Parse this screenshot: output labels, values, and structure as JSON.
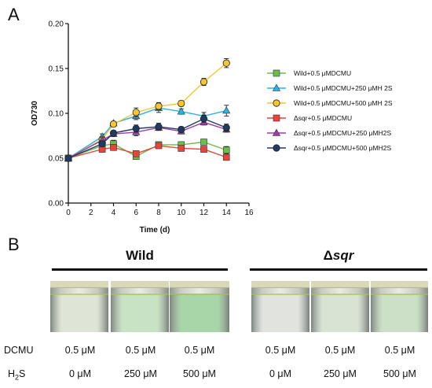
{
  "panel_a": {
    "letter": "A"
  },
  "panel_b": {
    "letter": "B",
    "group_wild": "Wild",
    "group_sqr_delta": "Δ",
    "group_sqr_name": "sqr",
    "row_dcmu": "DCMU",
    "row_h2s_main": "H",
    "row_h2s_sub": "2",
    "row_h2s_tail": "S",
    "dcmu_values": [
      "0.5 μM",
      "0.5 μM",
      "0.5 μM",
      "0.5 μM",
      "0.5 μM",
      "0.5 μM"
    ],
    "h2s_values": [
      "0 μM",
      "250 μM",
      "500 μM",
      "0 μM",
      "250 μM",
      "500 μM"
    ],
    "vial_tints": [
      "#dfe5d6",
      "#c8e2c4",
      "#a9d6a8",
      "#e1e3df",
      "#d8e3d4",
      "#cbe0c6"
    ]
  },
  "chart_data": {
    "type": "line",
    "xlabel": "Time (d)",
    "ylabel": "OD730",
    "xlim": [
      0,
      16
    ],
    "ylim": [
      0,
      0.2
    ],
    "xticks": [
      0,
      2,
      4,
      6,
      8,
      10,
      12,
      14,
      16
    ],
    "yticks": [
      "0.00",
      "0.05",
      "0.10",
      "0.15",
      "0.20"
    ],
    "x": [
      0,
      3,
      4,
      6,
      8,
      10,
      12,
      14
    ],
    "grid": false,
    "legend_position": "right",
    "series": [
      {
        "name": "Wild+0.5 μMDCMU",
        "color": "#6abf4b",
        "marker": "square",
        "values": [
          0.05,
          0.064,
          0.066,
          0.052,
          0.065,
          0.065,
          0.068,
          0.059
        ],
        "errors": [
          0,
          0.003,
          0.004,
          0.002,
          0.003,
          0.003,
          0.003,
          0.004
        ]
      },
      {
        "name": "Wild+0.5 μMDCMU+250 μMH 2S",
        "color": "#29b4e6",
        "marker": "triangle",
        "values": [
          0.05,
          0.074,
          0.089,
          0.097,
          0.106,
          0.102,
          0.097,
          0.103
        ],
        "errors": [
          0,
          0.003,
          0.002,
          0.004,
          0.005,
          0.003,
          0.004,
          0.006
        ]
      },
      {
        "name": "Wild+0.5 μMDCMU+500 μMH 2S",
        "color": "#f7c531",
        "marker": "circle",
        "values": [
          0.05,
          0.071,
          0.088,
          0.101,
          0.108,
          0.111,
          0.135,
          0.156
        ],
        "errors": [
          0,
          0.003,
          0.003,
          0.005,
          0.004,
          0.003,
          0.004,
          0.005
        ]
      },
      {
        "name": "Δsqr+0.5 μMDCMU",
        "color": "#e8443a",
        "marker": "square",
        "values": [
          0.05,
          0.06,
          0.062,
          0.055,
          0.064,
          0.061,
          0.06,
          0.051
        ],
        "errors": [
          0,
          0.002,
          0.003,
          0.002,
          0.002,
          0.002,
          0.002,
          0.003
        ]
      },
      {
        "name": "Δsqr+0.5 μMDCMU+250 μMH2S",
        "color": "#9b3fa5",
        "marker": "triangle",
        "values": [
          0.05,
          0.07,
          0.077,
          0.079,
          0.084,
          0.08,
          0.09,
          0.082
        ],
        "errors": [
          0,
          0.003,
          0.003,
          0.004,
          0.003,
          0.003,
          0.003,
          0.003
        ]
      },
      {
        "name": "Δsqr+0.5 μMDCMU+500 μMH2S",
        "color": "#1f3b63",
        "marker": "circle",
        "values": [
          0.05,
          0.066,
          0.078,
          0.083,
          0.085,
          0.082,
          0.094,
          0.084
        ],
        "errors": [
          0,
          0.003,
          0.002,
          0.004,
          0.004,
          0.003,
          0.004,
          0.004
        ]
      }
    ]
  }
}
